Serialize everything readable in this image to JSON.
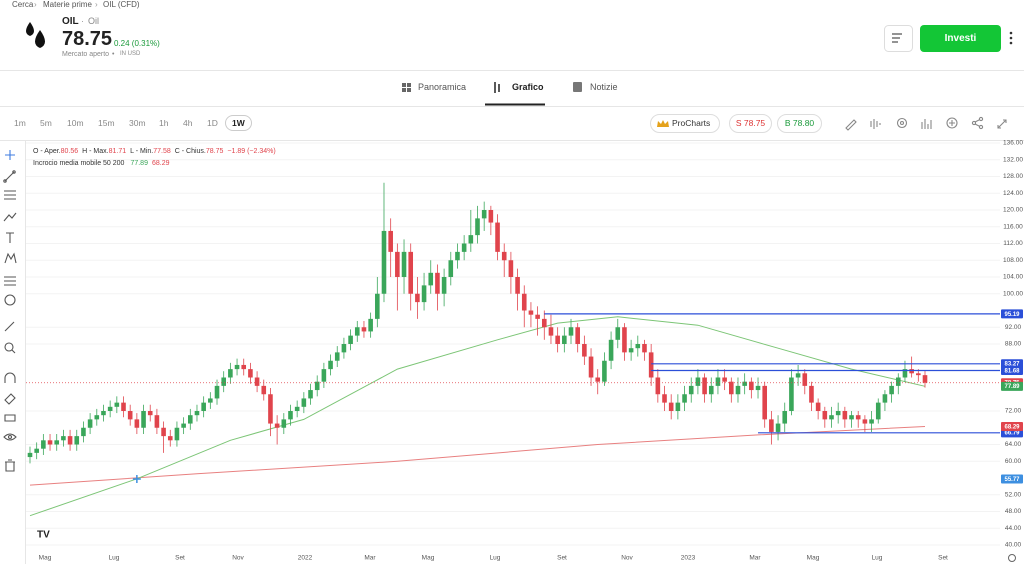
{
  "breadcrumb": [
    "Cerca",
    "Materie prime",
    "OIL (CFD)"
  ],
  "instrument": {
    "symbol": "OIL",
    "name": "Oil",
    "price": "78.75",
    "change": "0.24 (0.31%)",
    "status": "Mercato aperto",
    "currency": "IN USD"
  },
  "actions": {
    "invest": "Investi"
  },
  "tabs": [
    "Panoramica",
    "Grafico",
    "Notizie"
  ],
  "timeframes": [
    "1m",
    "5m",
    "10m",
    "15m",
    "30m",
    "1h",
    "4h",
    "1D",
    "1W"
  ],
  "toolbar": {
    "procharts": "ProCharts",
    "sell": "S 78.75",
    "buy": "B 78.80"
  },
  "chart": {
    "type": "candlestick",
    "ohlc_labels": [
      "O - Aper.",
      "H - Max.",
      "L - Min.",
      "C - Chius."
    ],
    "change": "−1.89 (−2.34%)",
    "indicator": "Incrocio media mobile 50 200",
    "up_color": "#3aa65a",
    "down_color": "#e0444c",
    "candles": [
      [
        61,
        63.5,
        59.5,
        62
      ],
      [
        62,
        64.5,
        60.5,
        63
      ],
      [
        63,
        66.5,
        61.5,
        65
      ],
      [
        65,
        66.5,
        62.5,
        64
      ],
      [
        64,
        66.5,
        62.5,
        65
      ],
      [
        65,
        67.5,
        63.5,
        66
      ],
      [
        66,
        67.5,
        62.5,
        64
      ],
      [
        64,
        67.5,
        62.5,
        66
      ],
      [
        66,
        69.5,
        64.5,
        68
      ],
      [
        68,
        71.5,
        66.5,
        70
      ],
      [
        70,
        72.5,
        68.5,
        71
      ],
      [
        71,
        73.5,
        69.5,
        72
      ],
      [
        72,
        74.5,
        70.5,
        73
      ],
      [
        73,
        75.5,
        71.5,
        74
      ],
      [
        74,
        75.5,
        70.5,
        72
      ],
      [
        72,
        73.5,
        68.5,
        70
      ],
      [
        70,
        71.5,
        66.5,
        68
      ],
      [
        68,
        73.5,
        66.5,
        72
      ],
      [
        72,
        73.5,
        69.5,
        71
      ],
      [
        71,
        72.5,
        66.5,
        68
      ],
      [
        68,
        69.5,
        62,
        66
      ],
      [
        66,
        67.5,
        63.5,
        65
      ],
      [
        65,
        69.5,
        63.5,
        68
      ],
      [
        68,
        70.5,
        66.5,
        69
      ],
      [
        69,
        72.5,
        67.5,
        71
      ],
      [
        71,
        73.5,
        69.5,
        72
      ],
      [
        72,
        75.5,
        70.5,
        74
      ],
      [
        74,
        76.5,
        72.5,
        75
      ],
      [
        75,
        79.5,
        73.5,
        78
      ],
      [
        78,
        81.5,
        76.5,
        80
      ],
      [
        80,
        83.5,
        78.5,
        82
      ],
      [
        82,
        84.5,
        80.5,
        83
      ],
      [
        83,
        84.5,
        80.5,
        82
      ],
      [
        82,
        83.5,
        78.5,
        80
      ],
      [
        80,
        81.5,
        76.5,
        78
      ],
      [
        78,
        79.5,
        74.5,
        76
      ],
      [
        76,
        77.5,
        66,
        69
      ],
      [
        69,
        71,
        64,
        68
      ],
      [
        68,
        71.5,
        66.5,
        70
      ],
      [
        70,
        73.5,
        68.5,
        72
      ],
      [
        72,
        74.5,
        70.5,
        73
      ],
      [
        73,
        76.5,
        71.5,
        75
      ],
      [
        75,
        78.5,
        73.5,
        77
      ],
      [
        77,
        80.5,
        75.5,
        79
      ],
      [
        79,
        83.5,
        77.5,
        82
      ],
      [
        82,
        85.5,
        80.5,
        84
      ],
      [
        84,
        87.5,
        82.5,
        86
      ],
      [
        86,
        89.5,
        84.5,
        88
      ],
      [
        88,
        91.5,
        86.5,
        90
      ],
      [
        90,
        93.5,
        88.5,
        92
      ],
      [
        92,
        93.5,
        89.5,
        91
      ],
      [
        91,
        95.5,
        89.5,
        94
      ],
      [
        94,
        104,
        92,
        100
      ],
      [
        100,
        126.5,
        98,
        115
      ],
      [
        115,
        118,
        104,
        110
      ],
      [
        110,
        112,
        96,
        104
      ],
      [
        104,
        113,
        100,
        110
      ],
      [
        110,
        112,
        96,
        100
      ],
      [
        100,
        104,
        94,
        98
      ],
      [
        98,
        105,
        96,
        102
      ],
      [
        102,
        108,
        100,
        105
      ],
      [
        105,
        107,
        96,
        100
      ],
      [
        100,
        106,
        97,
        104
      ],
      [
        104,
        110,
        102,
        108
      ],
      [
        108,
        112,
        106,
        110
      ],
      [
        110,
        114,
        108,
        112
      ],
      [
        112,
        120,
        110,
        114
      ],
      [
        114,
        121,
        112,
        118
      ],
      [
        118,
        122,
        115,
        120
      ],
      [
        120,
        121,
        114,
        117
      ],
      [
        117,
        119,
        108,
        110
      ],
      [
        110,
        112,
        104,
        108
      ],
      [
        108,
        110,
        100,
        104
      ],
      [
        104,
        106,
        96,
        100
      ],
      [
        100,
        102,
        92,
        96
      ],
      [
        96,
        98,
        92,
        95
      ],
      [
        95,
        97,
        90,
        94
      ],
      [
        94,
        96,
        89,
        92
      ],
      [
        92,
        95,
        88,
        90
      ],
      [
        90,
        92,
        86,
        88
      ],
      [
        88,
        92,
        86,
        90
      ],
      [
        90,
        94,
        88,
        92
      ],
      [
        92,
        93,
        86,
        88
      ],
      [
        88,
        90,
        83,
        85
      ],
      [
        85,
        87,
        78,
        80
      ],
      [
        80,
        82,
        76,
        79
      ],
      [
        79,
        86,
        78,
        84
      ],
      [
        84,
        91,
        82,
        89
      ],
      [
        89,
        94,
        87,
        92
      ],
      [
        92,
        93,
        84,
        86
      ],
      [
        86,
        89,
        84,
        87
      ],
      [
        87,
        90,
        85,
        88
      ],
      [
        88,
        89,
        84,
        86
      ],
      [
        86,
        88,
        78,
        80
      ],
      [
        80,
        82,
        74,
        76
      ],
      [
        76,
        78,
        72,
        74
      ],
      [
        74,
        76,
        70,
        72
      ],
      [
        72,
        76,
        70,
        74
      ],
      [
        74,
        78,
        72,
        76
      ],
      [
        76,
        80,
        74,
        78
      ],
      [
        78,
        82,
        76,
        80
      ],
      [
        80,
        81,
        74,
        76
      ],
      [
        76,
        80,
        74,
        78
      ],
      [
        78,
        82,
        76,
        80
      ],
      [
        80,
        82,
        77,
        79
      ],
      [
        79,
        80,
        74,
        76
      ],
      [
        76,
        80,
        74,
        78
      ],
      [
        78,
        81,
        76,
        79
      ],
      [
        79,
        80,
        75,
        77
      ],
      [
        77,
        80,
        75,
        78
      ],
      [
        78,
        79,
        68,
        70
      ],
      [
        70,
        72,
        64,
        67
      ],
      [
        67,
        71,
        65,
        69
      ],
      [
        69,
        74,
        67,
        72
      ],
      [
        72,
        82,
        71,
        80
      ],
      [
        80,
        83,
        78,
        81
      ],
      [
        81,
        82,
        76,
        78
      ],
      [
        78,
        79,
        72,
        74
      ],
      [
        74,
        75,
        70,
        72
      ],
      [
        72,
        73,
        68,
        70
      ],
      [
        70,
        73,
        68,
        71
      ],
      [
        71,
        74,
        69,
        72
      ],
      [
        72,
        73,
        68,
        70
      ],
      [
        70,
        72,
        68,
        71
      ],
      [
        71,
        72,
        68,
        70
      ],
      [
        70,
        71,
        67,
        69
      ],
      [
        69,
        72,
        67,
        70
      ],
      [
        70,
        75,
        69,
        74
      ],
      [
        74,
        77,
        72,
        76
      ],
      [
        76,
        79,
        74,
        78
      ],
      [
        78,
        81,
        76,
        80
      ],
      [
        80,
        84,
        79,
        82
      ],
      [
        82,
        85,
        80,
        81
      ],
      [
        81,
        82,
        79,
        80.56
      ],
      [
        80.56,
        81.71,
        77.58,
        78.75
      ]
    ],
    "ma50": {
      "x": [
        0,
        16,
        30,
        41,
        55,
        70,
        79,
        88,
        100,
        112,
        123,
        134
      ],
      "values": [
        47,
        55.8,
        65,
        70,
        82,
        89,
        93,
        94.5,
        92.5,
        87,
        82,
        77.89
      ],
      "color": "#7cc576"
    },
    "ma200": {
      "x": [
        0,
        25,
        55,
        85,
        109,
        134
      ],
      "values": [
        54.3,
        57,
        60,
        64,
        66.3,
        68.29
      ],
      "color": "#e88080"
    },
    "levels": [
      {
        "value": 95.19,
        "from": 77
      },
      {
        "value": 83.27,
        "from": 93
      },
      {
        "value": 81.68,
        "from": 93
      },
      {
        "value": 66.79,
        "from": 109
      }
    ],
    "crosshair": {
      "x": 16,
      "value": 55.77
    },
    "ylim": [
      40,
      136
    ],
    "yticks": [
      {
        "value": 136,
        "label": "136.00"
      },
      {
        "value": 132,
        "label": "132.00"
      },
      {
        "value": 128,
        "label": "128.00"
      },
      {
        "value": 124,
        "label": "124.00"
      },
      {
        "value": 120,
        "label": "120.00"
      },
      {
        "value": 116,
        "label": "116.00"
      },
      {
        "value": 112,
        "label": "112.00"
      },
      {
        "value": 108,
        "label": "108.00"
      },
      {
        "value": 104,
        "label": "104.00"
      },
      {
        "value": 100,
        "label": "100.00"
      },
      {
        "value": 92,
        "label": "92.00"
      },
      {
        "value": 88,
        "label": "88.00"
      },
      {
        "value": 72,
        "label": "72.00"
      },
      {
        "value": 64,
        "label": "64.00"
      },
      {
        "value": 60,
        "label": "60.00"
      },
      {
        "value": 52,
        "label": "52.00"
      },
      {
        "value": 48,
        "label": "48.00"
      },
      {
        "value": 44,
        "label": "44.00"
      },
      {
        "value": 40,
        "label": "40.00"
      }
    ],
    "xlabels": [
      "Mag",
      "Lug",
      "Set",
      "Nov",
      "2022",
      "Mar",
      "Mag",
      "Lug",
      "Set",
      "Nov",
      "2023",
      "Mar",
      "Mag",
      "Lug",
      "Set"
    ]
  }
}
